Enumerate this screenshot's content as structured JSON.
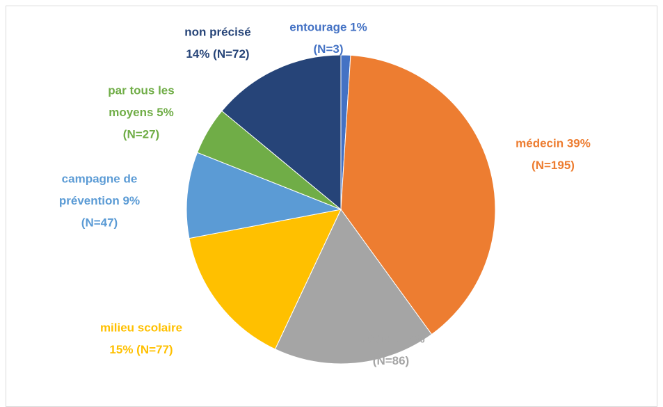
{
  "chart_data": {
    "type": "pie",
    "values": [
      1,
      39,
      17,
      15,
      9,
      5,
      14
    ],
    "value_labels": [
      [
        "entourage 1%",
        "(N=3)"
      ],
      [
        "médecin 39%",
        "(N=195)"
      ],
      [
        "médias 17%",
        "(N=86)"
      ],
      [
        "milieu scolaire",
        "15% (N=77)"
      ],
      [
        "campagne de",
        "prévention 9%",
        "(N=47)"
      ],
      [
        "par tous les",
        "moyens 5%",
        "(N=27)"
      ],
      [
        "non précisé",
        "14% (N=72)"
      ]
    ],
    "colors": [
      "#4472c4",
      "#ed7d31",
      "#a5a5a5",
      "#ffc000",
      "#5b9bd5",
      "#70ad47",
      "#264478"
    ]
  }
}
